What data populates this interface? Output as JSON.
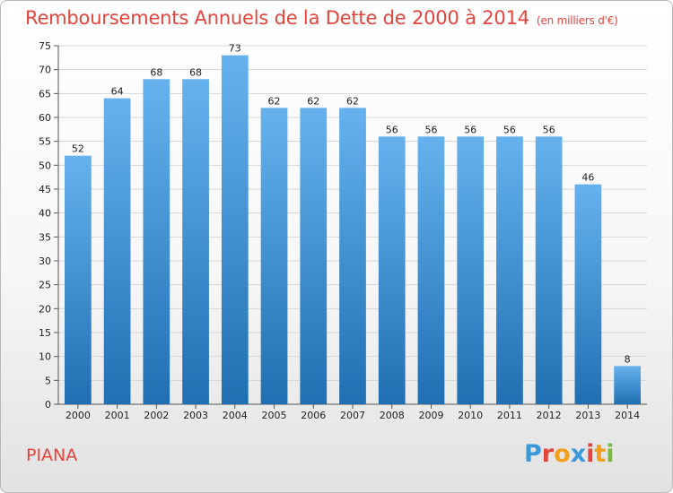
{
  "title": "Remboursements Annuels de la Dette de 2000 à 2014",
  "unit_note": "(en milliers d'€)",
  "commune": "PIANA",
  "logo": {
    "letters": [
      "P",
      "r",
      "o",
      "x",
      "i",
      "t",
      "i"
    ],
    "colors": [
      "#3a9ad9",
      "#e2453d",
      "#f2a01c",
      "#3a9ad9",
      "#e2453d",
      "#f2a01c",
      "#7ab93e"
    ]
  },
  "colors": {
    "bar_top": "#66b2ee",
    "bar_bottom": "#1f6fb2",
    "title": "#e2453d"
  },
  "chart_data": {
    "type": "bar",
    "categories": [
      "2000",
      "2001",
      "2002",
      "2003",
      "2004",
      "2005",
      "2006",
      "2007",
      "2008",
      "2009",
      "2010",
      "2011",
      "2012",
      "2013",
      "2014"
    ],
    "values": [
      52,
      64,
      68,
      68,
      73,
      62,
      62,
      62,
      56,
      56,
      56,
      56,
      56,
      46,
      8
    ],
    "ylim": [
      0,
      75
    ],
    "yticks": [
      0,
      5,
      10,
      15,
      20,
      25,
      30,
      35,
      40,
      45,
      50,
      55,
      60,
      65,
      70,
      75
    ],
    "grid": true,
    "title": "Remboursements Annuels de la Dette de 2000 à 2014",
    "xlabel": "",
    "ylabel": ""
  }
}
